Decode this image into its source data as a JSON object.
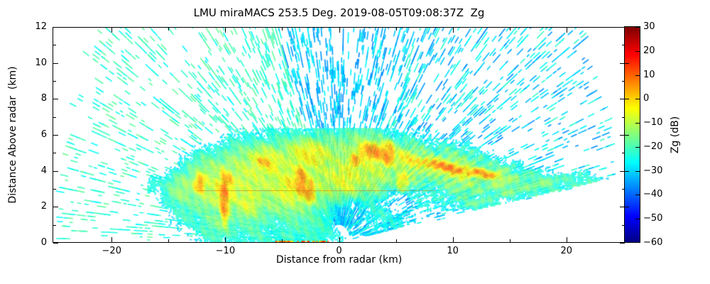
{
  "title": "LMU miraMACS 253.5 Deg. 2019-08-05T09:08:37Z  Zg",
  "axes": {
    "xlabel": "Distance from radar (km)",
    "ylabel": "Distance Above radar  (km)",
    "x_major_ticks": [
      {
        "value": -20,
        "label": "−20"
      },
      {
        "value": -10,
        "label": "−10"
      },
      {
        "value": 0,
        "label": "0"
      },
      {
        "value": 10,
        "label": "10"
      },
      {
        "value": 20,
        "label": "20"
      }
    ],
    "x_minor_ticks": [
      -15,
      -5,
      5,
      15
    ],
    "y_major_ticks": [
      {
        "value": 0,
        "label": "0"
      },
      {
        "value": 2,
        "label": "2"
      },
      {
        "value": 4,
        "label": "4"
      },
      {
        "value": 6,
        "label": "6"
      },
      {
        "value": 8,
        "label": "8"
      },
      {
        "value": 10,
        "label": "10"
      },
      {
        "value": 12,
        "label": "12"
      }
    ],
    "y_minor_ticks": [
      1,
      3,
      5,
      7,
      9,
      11
    ]
  },
  "colorbar": {
    "label": "Zg (dB)",
    "vmin": -60,
    "vmax": 30,
    "colormap": "jet",
    "major_ticks": [
      {
        "value": 30,
        "label": "30"
      },
      {
        "value": 20,
        "label": "20"
      },
      {
        "value": 10,
        "label": "10"
      },
      {
        "value": 0,
        "label": "0"
      },
      {
        "value": -10,
        "label": "−10"
      },
      {
        "value": -20,
        "label": "−20"
      },
      {
        "value": -30,
        "label": "−30"
      },
      {
        "value": -40,
        "label": "−40"
      },
      {
        "value": -50,
        "label": "−50"
      },
      {
        "value": -60,
        "label": "−60"
      }
    ],
    "minor_ticks": [
      15,
      0,
      -15,
      -30,
      -45
    ]
  },
  "chart_data": {
    "type": "heatmap",
    "title": "LMU miraMACS 253.5 Deg. 2019-08-05T09:08:37Z  Zg",
    "xlabel": "Distance from radar (km)",
    "ylabel": "Distance Above radar  (km)",
    "xlim": [
      -25.2,
      25.2
    ],
    "ylim": [
      0,
      12
    ],
    "grid": false,
    "colormap": "jet",
    "value_label": "Zg (dB)",
    "value_range": [
      -60,
      30
    ],
    "scan": {
      "kind": "RHI",
      "max_range_km": 24.8,
      "min_right_elevation_deg": 8.4,
      "seed": 7
    },
    "noise": {
      "ray_step_deg": 0.55,
      "range_step_km": 0.22,
      "min_range_km": 1.0,
      "base_density": 0.26,
      "dash_len_km": [
        0.25,
        0.8
      ],
      "regions": [
        {
          "from_deg": 8.4,
          "to_deg": 60,
          "v_mean": -29,
          "v_spread": 8
        },
        {
          "from_deg": 60,
          "to_deg": 115,
          "v_mean": -31,
          "v_spread": 6
        },
        {
          "from_deg": 115,
          "to_deg": 180,
          "v_mean": -22,
          "v_spread": 5
        }
      ]
    },
    "falloff_k": 6,
    "draw_threshold_db": -26,
    "fringe_threshold_db": -31,
    "echo_gaussians": [
      [
        -13.5,
        3.0,
        1.5,
        0.85,
        5,
        -13
      ],
      [
        -11,
        3.2,
        2.0,
        1.25,
        0,
        -9
      ],
      [
        -8,
        3.4,
        2.4,
        1.5,
        0,
        -8
      ],
      [
        -4.5,
        3.5,
        2.6,
        1.6,
        0,
        -7
      ],
      [
        -1,
        3.9,
        2.5,
        1.55,
        0,
        -8
      ],
      [
        2.5,
        4.3,
        2.5,
        1.35,
        -8,
        -7
      ],
      [
        6.5,
        4.0,
        2.5,
        1.15,
        -10,
        -9
      ],
      [
        10.5,
        3.9,
        2.5,
        1.0,
        -8,
        -11
      ],
      [
        14,
        3.5,
        2.5,
        0.8,
        -7,
        -14
      ],
      [
        17.5,
        3.3,
        2.6,
        0.6,
        -5,
        -17
      ],
      [
        21.5,
        3.25,
        2.4,
        0.5,
        -4,
        -19
      ],
      [
        -6,
        1.5,
        3.0,
        1.35,
        0,
        -15
      ],
      [
        -1.5,
        1.3,
        3.2,
        1.25,
        0,
        -18
      ],
      [
        3,
        1.5,
        2.6,
        1.15,
        0,
        -19
      ],
      [
        -10.5,
        1.3,
        1.8,
        1.1,
        0,
        -16
      ],
      [
        -13,
        2.0,
        1.5,
        1.0,
        0,
        -19
      ],
      [
        12,
        2.3,
        3.0,
        0.55,
        -10,
        -19
      ],
      [
        16.5,
        2.8,
        2.6,
        0.5,
        -9,
        -20
      ],
      [
        20.5,
        3.1,
        2.2,
        0.45,
        -8,
        -21
      ],
      [
        -17,
        3.2,
        2.2,
        0.45,
        0,
        -22
      ],
      [
        -10,
        3.0,
        1.05,
        0.9,
        0,
        -2
      ],
      [
        -6.3,
        4.4,
        1.5,
        0.7,
        -5,
        -3
      ],
      [
        -2.5,
        4.85,
        1.7,
        0.65,
        -3,
        -2
      ],
      [
        0.5,
        3.6,
        1.5,
        0.85,
        0,
        -4
      ],
      [
        -4.2,
        3.2,
        1.15,
        0.85,
        0,
        -2
      ],
      [
        3.2,
        5.0,
        1.25,
        0.5,
        0,
        -1
      ],
      [
        6,
        4.6,
        1.5,
        0.45,
        -10,
        -3
      ],
      [
        9.5,
        4.15,
        2.1,
        0.4,
        -8,
        -2
      ],
      [
        -8,
        2.3,
        1.1,
        0.75,
        0,
        -6
      ],
      [
        -10.1,
        2.6,
        0.3,
        0.95,
        3,
        9
      ],
      [
        -9.9,
        3.4,
        0.45,
        0.4,
        0,
        6
      ],
      [
        -3.3,
        3.4,
        0.42,
        0.7,
        8,
        8
      ],
      [
        -2.6,
        2.9,
        0.38,
        0.5,
        0,
        7
      ],
      [
        3.0,
        5.05,
        1.0,
        0.38,
        -4,
        7
      ],
      [
        4.3,
        4.9,
        0.45,
        0.45,
        0,
        8
      ],
      [
        1.4,
        4.55,
        0.45,
        0.33,
        0,
        5
      ],
      [
        9.5,
        4.2,
        2.1,
        0.2,
        -8,
        8
      ],
      [
        12.8,
        3.85,
        1.1,
        0.17,
        -8,
        6
      ],
      [
        -6.5,
        4.5,
        0.75,
        0.28,
        -5,
        3
      ],
      [
        -12.2,
        3.3,
        0.4,
        0.4,
        0,
        5
      ],
      [
        5.6,
        3.4,
        0.45,
        0.4,
        0,
        3
      ]
    ],
    "echo_dips": [
      [
        0.8,
        1.3,
        1.3,
        0.65,
        0,
        15
      ],
      [
        5.2,
        2.4,
        1.1,
        0.65,
        0,
        13
      ],
      [
        -5.8,
        0.9,
        0.85,
        0.45,
        0,
        9
      ],
      [
        7.8,
        3.0,
        0.9,
        0.5,
        -10,
        11
      ],
      [
        2.5,
        0.65,
        1.1,
        0.45,
        0,
        9
      ]
    ],
    "melting_line": {
      "y_km": 2.92,
      "x_from_km": -12.5,
      "x_to_km": 8.5,
      "color": "rgba(210,100,0,0.5)"
    },
    "ground_clutter": {
      "x_from_km": -5.6,
      "x_to_km": -0.6,
      "prob": 0.75,
      "v_min": -2,
      "v_max": 16
    }
  }
}
